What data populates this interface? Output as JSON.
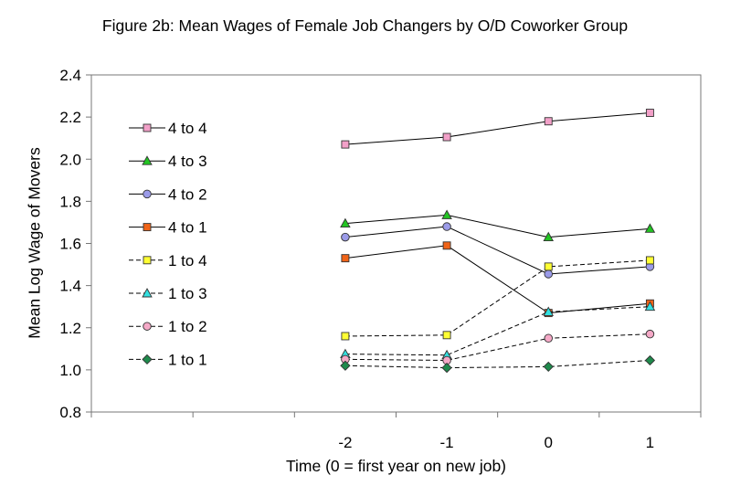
{
  "chart_data": {
    "type": "line",
    "title": "Figure 2b: Mean Wages of Female Job Changers by O/D Coworker Group",
    "xlabel": "Time (0 = first year on new job)",
    "ylabel": "Mean Log Wage of Movers",
    "x_categories": [
      "",
      "",
      "-2",
      "-1",
      "0",
      "1"
    ],
    "ylim": [
      0.8,
      2.4
    ],
    "yticks": [
      "0.8",
      "1.0",
      "1.2",
      "1.4",
      "1.6",
      "1.8",
      "2.0",
      "2.2",
      "2.4"
    ],
    "grid": false,
    "legend_position": "left inside",
    "series": [
      {
        "name": "4 to 4",
        "marker": "square",
        "fill": "#f2a0c8",
        "dash": false,
        "x": [
          -2,
          -1,
          0,
          1
        ],
        "values": [
          2.07,
          2.105,
          2.18,
          2.22
        ]
      },
      {
        "name": "4 to 3",
        "marker": "triangle",
        "fill": "#22c422",
        "dash": false,
        "x": [
          -2,
          -1,
          0,
          1
        ],
        "values": [
          1.695,
          1.735,
          1.63,
          1.67
        ]
      },
      {
        "name": "4 to 2",
        "marker": "circle",
        "fill": "#9b9be8",
        "dash": false,
        "x": [
          -2,
          -1,
          0,
          1
        ],
        "values": [
          1.63,
          1.68,
          1.455,
          1.49
        ]
      },
      {
        "name": "4 to 1",
        "marker": "square",
        "fill": "#f06418",
        "dash": false,
        "x": [
          -2,
          -1,
          0,
          1
        ],
        "values": [
          1.53,
          1.59,
          1.27,
          1.315
        ]
      },
      {
        "name": "1 to 4",
        "marker": "square",
        "fill": "#ffff33",
        "dash": true,
        "x": [
          -2,
          -1,
          0,
          1
        ],
        "values": [
          1.16,
          1.165,
          1.49,
          1.52
        ]
      },
      {
        "name": "1 to 3",
        "marker": "triangle",
        "fill": "#33e0e0",
        "dash": true,
        "x": [
          -2,
          -1,
          0,
          1
        ],
        "values": [
          1.075,
          1.07,
          1.275,
          1.3
        ]
      },
      {
        "name": "1 to 2",
        "marker": "circle",
        "fill": "#f5a9c7",
        "dash": true,
        "x": [
          -2,
          -1,
          0,
          1
        ],
        "values": [
          1.05,
          1.045,
          1.15,
          1.17
        ]
      },
      {
        "name": "1 to 1",
        "marker": "diamond",
        "fill": "#1f8a4c",
        "dash": true,
        "x": [
          -2,
          -1,
          0,
          1
        ],
        "values": [
          1.02,
          1.01,
          1.015,
          1.045
        ]
      }
    ]
  }
}
